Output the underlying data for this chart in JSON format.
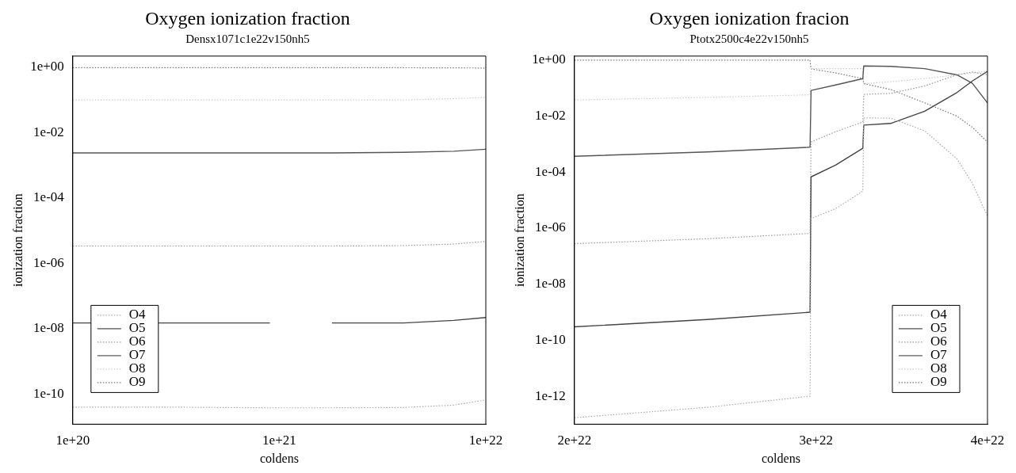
{
  "chart_data": [
    {
      "type": "line",
      "title": "Oxygen ionization fraction",
      "subtitle": "Densx1071c1e22v150nh5",
      "xlabel": "coldens",
      "ylabel": "ionization fraction",
      "log": "xy",
      "grid": false,
      "legend": "bottom left",
      "marker": "none",
      "x": [
        1e+20,
        3e+20,
        5e+20,
        9e+20,
        1.2e+21,
        1.8e+21,
        4e+21,
        7e+21,
        1e+22
      ],
      "xlim": [
        1e+20,
        1e+22
      ],
      "xticks": [
        {
          "value": 1e+20,
          "label": "1e+20"
        },
        {
          "value": 1e+21,
          "label": "1e+21"
        },
        {
          "value": 1e+22,
          "label": "1e+22"
        }
      ],
      "ylim": [
        1.2e-11,
        2.2
      ],
      "yticks": [
        {
          "value": 1e-10,
          "label": "1e-10"
        },
        {
          "value": 1e-08,
          "label": "1e-08"
        },
        {
          "value": 1e-06,
          "label": "1e-06"
        },
        {
          "value": 0.0001,
          "label": "1e-04"
        },
        {
          "value": 0.01,
          "label": "1e-02"
        },
        {
          "value": 1,
          "label": "1e+00"
        }
      ],
      "series": [
        {
          "name": "O4",
          "color": "#aaaaaa",
          "line_style": "dotted",
          "values": [
            4e-11,
            4e-11,
            3.9e-11,
            3.8e-11,
            3.8e-11,
            3.8e-11,
            3.9e-11,
            4.6e-11,
            6.6e-11
          ]
        },
        {
          "name": "O5",
          "color": "#444444",
          "line_style": "solid",
          "values": [
            1.5e-08,
            1.5e-08,
            1.5e-08,
            1.5e-08,
            null,
            1.5e-08,
            1.5e-08,
            1.8e-08,
            2.2e-08
          ]
        },
        {
          "name": "O6",
          "color": "#999999",
          "line_style": "dotted",
          "values": [
            3.4e-06,
            3.4e-06,
            3.4e-06,
            3.4e-06,
            3.4e-06,
            3.4e-06,
            3.5e-06,
            3.9e-06,
            4.7e-06
          ]
        },
        {
          "name": "O7",
          "color": "#555555",
          "line_style": "solid",
          "values": [
            0.0024,
            0.0024,
            0.0024,
            0.0024,
            0.0024,
            0.0024,
            0.0025,
            0.0027,
            0.0031
          ]
        },
        {
          "name": "O8",
          "color": "#cccccc",
          "line_style": "dotted",
          "values": [
            0.1,
            0.1,
            0.1,
            0.1,
            0.1,
            0.1,
            0.1,
            0.11,
            0.12
          ]
        },
        {
          "name": "O9",
          "color": "#777777",
          "line_style": "dotted",
          "values": [
            0.98,
            0.98,
            0.98,
            0.98,
            0.98,
            0.98,
            0.97,
            0.96,
            0.95
          ]
        }
      ]
    },
    {
      "type": "line",
      "title": "Oxygen ionization fracion",
      "subtitle": "Ptotx2500c4e22v150nh5",
      "xlabel": "coldens",
      "ylabel": "ionization fraction",
      "log": "xy",
      "grid": false,
      "legend": "bottom right",
      "marker": "none",
      "x": [
        2e+22,
        2.5e+22,
        2.97e+22,
        2.975e+22,
        3.1e+22,
        3.245e+22,
        3.25e+22,
        3.4e+22,
        3.6e+22,
        3.8e+22,
        3.9e+22,
        4e+22
      ],
      "xlim": [
        2e+22,
        4e+22
      ],
      "xticks": [
        {
          "value": 2e+22,
          "label": "2e+22"
        },
        {
          "value": 3e+22,
          "label": "3e+22"
        },
        {
          "value": 4e+22,
          "label": "4e+22"
        }
      ],
      "ylim": [
        1e-13,
        1.4
      ],
      "yticks": [
        {
          "value": 1e-12,
          "label": "1e-12"
        },
        {
          "value": 1e-10,
          "label": "1e-10"
        },
        {
          "value": 1e-08,
          "label": "1e-08"
        },
        {
          "value": 1e-06,
          "label": "1e-06"
        },
        {
          "value": 0.0001,
          "label": "1e-04"
        },
        {
          "value": 0.01,
          "label": "1e-02"
        },
        {
          "value": 1,
          "label": "1e+00"
        }
      ],
      "series": [
        {
          "name": "O4",
          "color": "#aaaaaa",
          "line_style": "dotted",
          "values": [
            1.7e-13,
            4e-13,
            1e-12,
            2.2e-06,
            5e-06,
            2.1e-05,
            0.0087,
            0.0085,
            0.003,
            0.0003,
            4e-05,
            2.7e-06
          ]
        },
        {
          "name": "O5",
          "color": "#444444",
          "line_style": "solid",
          "values": [
            3e-10,
            5.5e-10,
            1e-09,
            6.8e-05,
            0.00018,
            0.00072,
            0.0048,
            0.0055,
            0.015,
            0.07,
            0.18,
            0.4
          ]
        },
        {
          "name": "O6",
          "color": "#999999",
          "line_style": "dotted",
          "values": [
            2.8e-07,
            4.2e-07,
            6.5e-07,
            0.0012,
            0.0028,
            0.0062,
            0.06,
            0.065,
            0.12,
            0.3,
            0.38,
            0.3
          ]
        },
        {
          "name": "O7",
          "color": "#555555",
          "line_style": "solid",
          "values": [
            0.00037,
            0.00053,
            0.00078,
            0.083,
            0.13,
            0.22,
            0.62,
            0.6,
            0.5,
            0.3,
            0.15,
            0.03
          ]
        },
        {
          "name": "O8",
          "color": "#cccccc",
          "line_style": "dotted",
          "values": [
            0.038,
            0.047,
            0.058,
            0.5,
            0.5,
            0.5,
            0.146,
            0.17,
            0.22,
            0.3,
            0.35,
            0.4
          ]
        },
        {
          "name": "O9",
          "color": "#777777",
          "line_style": "dotted",
          "values": [
            1.0,
            1.0,
            1.0,
            0.49,
            0.35,
            0.22,
            0.146,
            0.09,
            0.03,
            0.01,
            0.004,
            0.0012
          ]
        }
      ]
    }
  ]
}
